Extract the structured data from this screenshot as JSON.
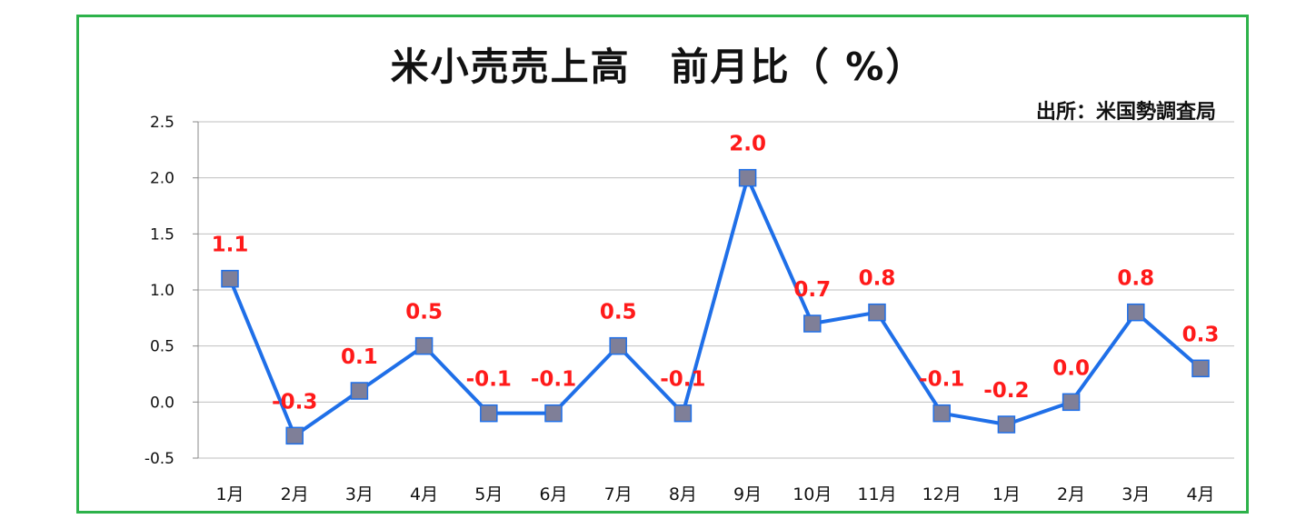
{
  "chart_data": {
    "type": "line",
    "title": "米小売売上高　前月比（ %）",
    "source": "出所：米国勢調査局",
    "categories": [
      "1月",
      "2月",
      "3月",
      "4月",
      "5月",
      "6月",
      "7月",
      "8月",
      "9月",
      "10月",
      "11月",
      "12月",
      "1月",
      "2月",
      "3月",
      "4月"
    ],
    "series": [
      {
        "values": [
          1.1,
          -0.3,
          0.1,
          0.5,
          -0.1,
          -0.1,
          0.5,
          -0.1,
          2.0,
          0.7,
          0.8,
          -0.1,
          -0.2,
          0.0,
          0.8,
          0.3
        ]
      }
    ],
    "data_labels": [
      "1.1",
      "-0.3",
      "0.1",
      "0.5",
      "-0.1",
      "-0.1",
      "0.5",
      "-0.1",
      "2.0",
      "0.7",
      "0.8",
      "-0.1",
      "-0.2",
      "0.0",
      "0.8",
      "0.3"
    ],
    "ylim": [
      -0.5,
      2.5
    ],
    "yticks": [
      "2.5",
      "2.0",
      "1.5",
      "1.0",
      "0.5",
      "0.0",
      "-0.5"
    ],
    "ytick_values": [
      2.5,
      2.0,
      1.5,
      1.0,
      0.5,
      0.0,
      -0.5
    ],
    "grid": true,
    "colors": {
      "line": "#1f6fe8",
      "marker": "#7f7f98",
      "label": "#ff1a1a",
      "grid": "#bfbfbf",
      "frame": "#2db24a"
    }
  }
}
